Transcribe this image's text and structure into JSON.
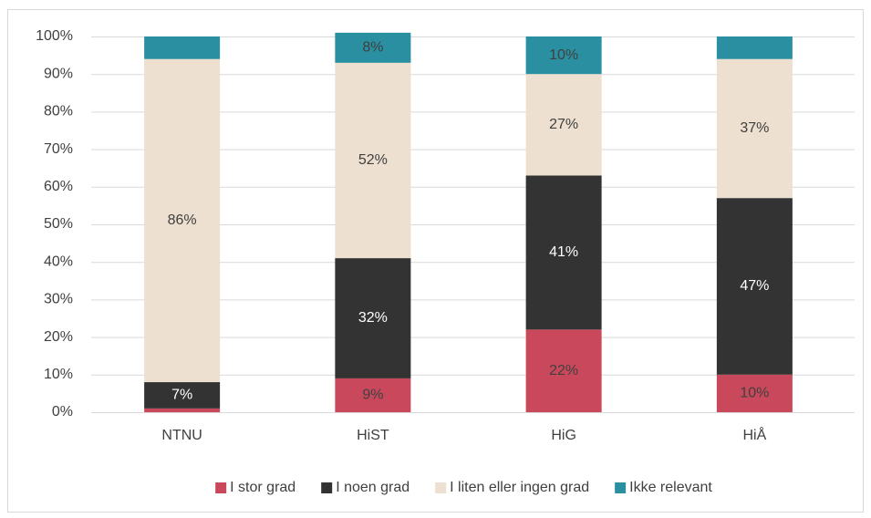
{
  "chart_data": {
    "type": "stacked_bar",
    "categories": [
      "NTNU",
      "HiST",
      "HiG",
      "HiÅ"
    ],
    "series": [
      {
        "name": "I stor grad",
        "color": "#c9485b",
        "values": [
          1,
          9,
          22,
          10
        ],
        "value_labels": [
          null,
          "9%",
          "22%",
          "10%"
        ]
      },
      {
        "name": "I noen grad",
        "color": "#333333",
        "values": [
          7,
          32,
          41,
          47
        ],
        "value_labels": [
          "7%",
          "32%",
          "41%",
          "47%"
        ]
      },
      {
        "name": "I liten eller ingen grad",
        "color": "#ede0d0",
        "values": [
          86,
          52,
          27,
          37
        ],
        "value_labels": [
          "86%",
          "52%",
          "27%",
          "37%"
        ]
      },
      {
        "name": "Ikke relevant",
        "color": "#2a8fa0",
        "values": [
          6,
          8,
          10,
          6
        ],
        "value_labels": [
          null,
          "8%",
          "10%",
          null
        ]
      }
    ],
    "ylim": [
      0,
      100
    ],
    "yticks": [
      {
        "value": 0,
        "label": "0%"
      },
      {
        "value": 10,
        "label": "10%"
      },
      {
        "value": 20,
        "label": "20%"
      },
      {
        "value": 30,
        "label": "30%"
      },
      {
        "value": 40,
        "label": "40%"
      },
      {
        "value": 50,
        "label": "50%"
      },
      {
        "value": 60,
        "label": "60%"
      },
      {
        "value": 70,
        "label": "70%"
      },
      {
        "value": 80,
        "label": "80%"
      },
      {
        "value": 90,
        "label": "90%"
      },
      {
        "value": 100,
        "label": "100%"
      }
    ],
    "grid": true,
    "legend": "bottom"
  }
}
